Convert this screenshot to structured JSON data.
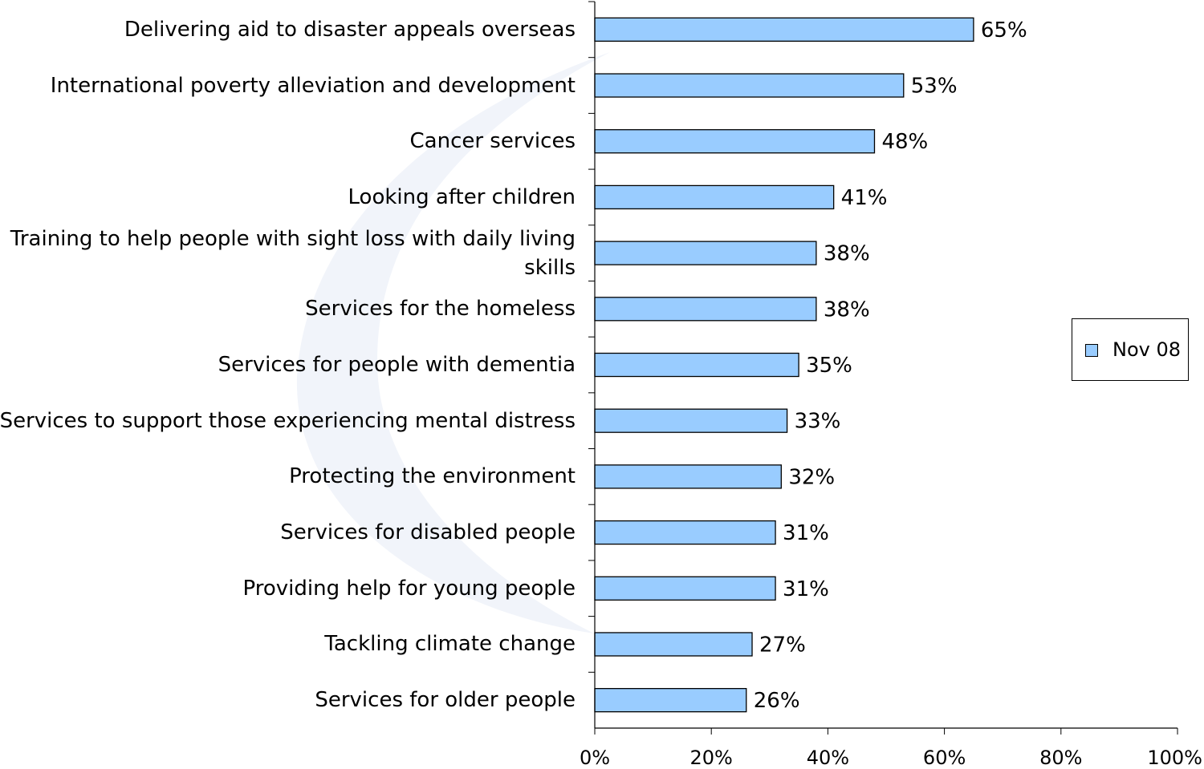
{
  "chart_data": {
    "type": "bar",
    "orientation": "horizontal",
    "categories": [
      "Delivering aid to disaster appeals overseas",
      "International poverty alleviation and development",
      "Cancer services",
      "Looking after children",
      "Training to help people with sight loss with daily living skills",
      "Services for the homeless",
      "Services for people with dementia",
      "Services to support those experiencing mental distress",
      "Protecting the environment",
      "Services for disabled people",
      "Providing help for young people",
      "Tackling climate change",
      "Services for older people"
    ],
    "series": [
      {
        "name": "Nov 08",
        "values": [
          65,
          53,
          48,
          41,
          38,
          38,
          35,
          33,
          32,
          31,
          31,
          27,
          26
        ],
        "labels": [
          "65%",
          "53%",
          "48%",
          "41%",
          "38%",
          "38%",
          "35%",
          "33%",
          "32%",
          "31%",
          "31%",
          "27%",
          "26%"
        ]
      }
    ],
    "xlim": [
      0,
      100
    ],
    "xticks": [
      0,
      20,
      40,
      60,
      80,
      100
    ],
    "xtick_labels": [
      "0%",
      "20%",
      "40%",
      "60%",
      "80%",
      "100%"
    ],
    "grid": false,
    "legend_position": "right",
    "bar_color": "#99ccff"
  }
}
